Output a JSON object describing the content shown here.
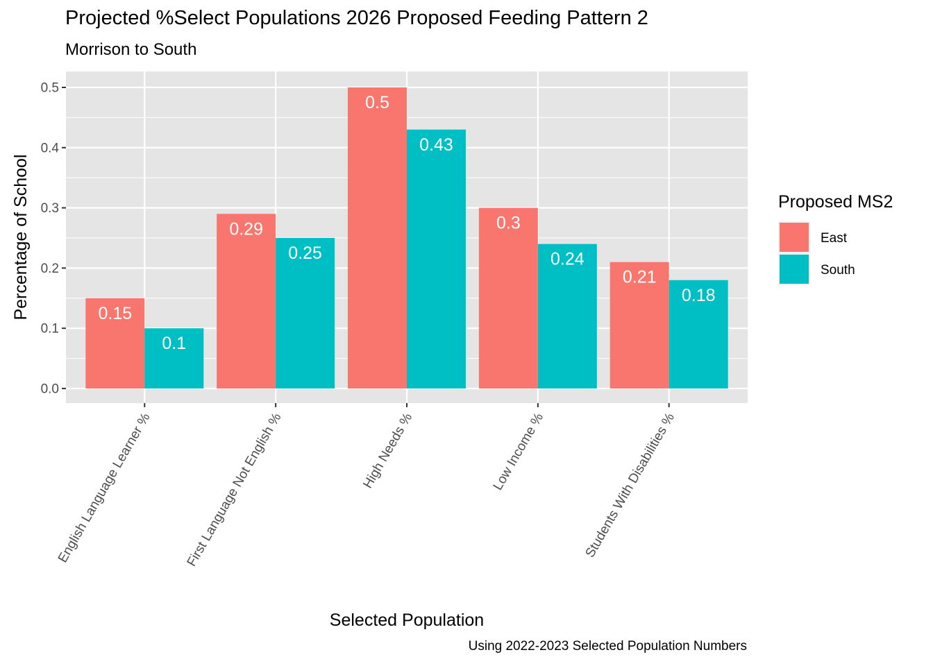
{
  "title": "Projected %Select Populations 2026 Proposed Feeding Pattern 2",
  "subtitle": "Morrison to South",
  "caption": "Using 2022-2023 Selected Population Numbers",
  "colors": {
    "panel_bg": "#E5E5E5",
    "grid": "#FFFFFF",
    "East": "#F8766D",
    "South": "#00BFC4",
    "bar_label": "#FFFFFF",
    "axis_text": "#4D4D4D"
  },
  "chart_data": {
    "type": "bar",
    "xlabel": "Selected Population",
    "ylabel": "Percentage of School",
    "ylim": [
      0,
      0.5
    ],
    "yticks": [
      0.0,
      0.1,
      0.2,
      0.3,
      0.4,
      0.5
    ],
    "ytick_labels": [
      "0.0",
      "0.1",
      "0.2",
      "0.3",
      "0.4",
      "0.5"
    ],
    "grid": true,
    "categories": [
      "English Language Learner %",
      "First Language Not English %",
      "High Needs %",
      "Low Income %",
      "Students With Disabilities %"
    ],
    "series": [
      {
        "name": "East",
        "values": [
          0.15,
          0.29,
          0.5,
          0.3,
          0.21
        ],
        "labels": [
          "0.15",
          "0.29",
          "0.5",
          "0.3",
          "0.21"
        ]
      },
      {
        "name": "South",
        "values": [
          0.1,
          0.25,
          0.43,
          0.24,
          0.18
        ],
        "labels": [
          "0.1",
          "0.25",
          "0.43",
          "0.24",
          "0.18"
        ]
      }
    ],
    "legend": {
      "title": "Proposed MS2",
      "placement": "right",
      "entries": [
        "East",
        "South"
      ]
    }
  }
}
